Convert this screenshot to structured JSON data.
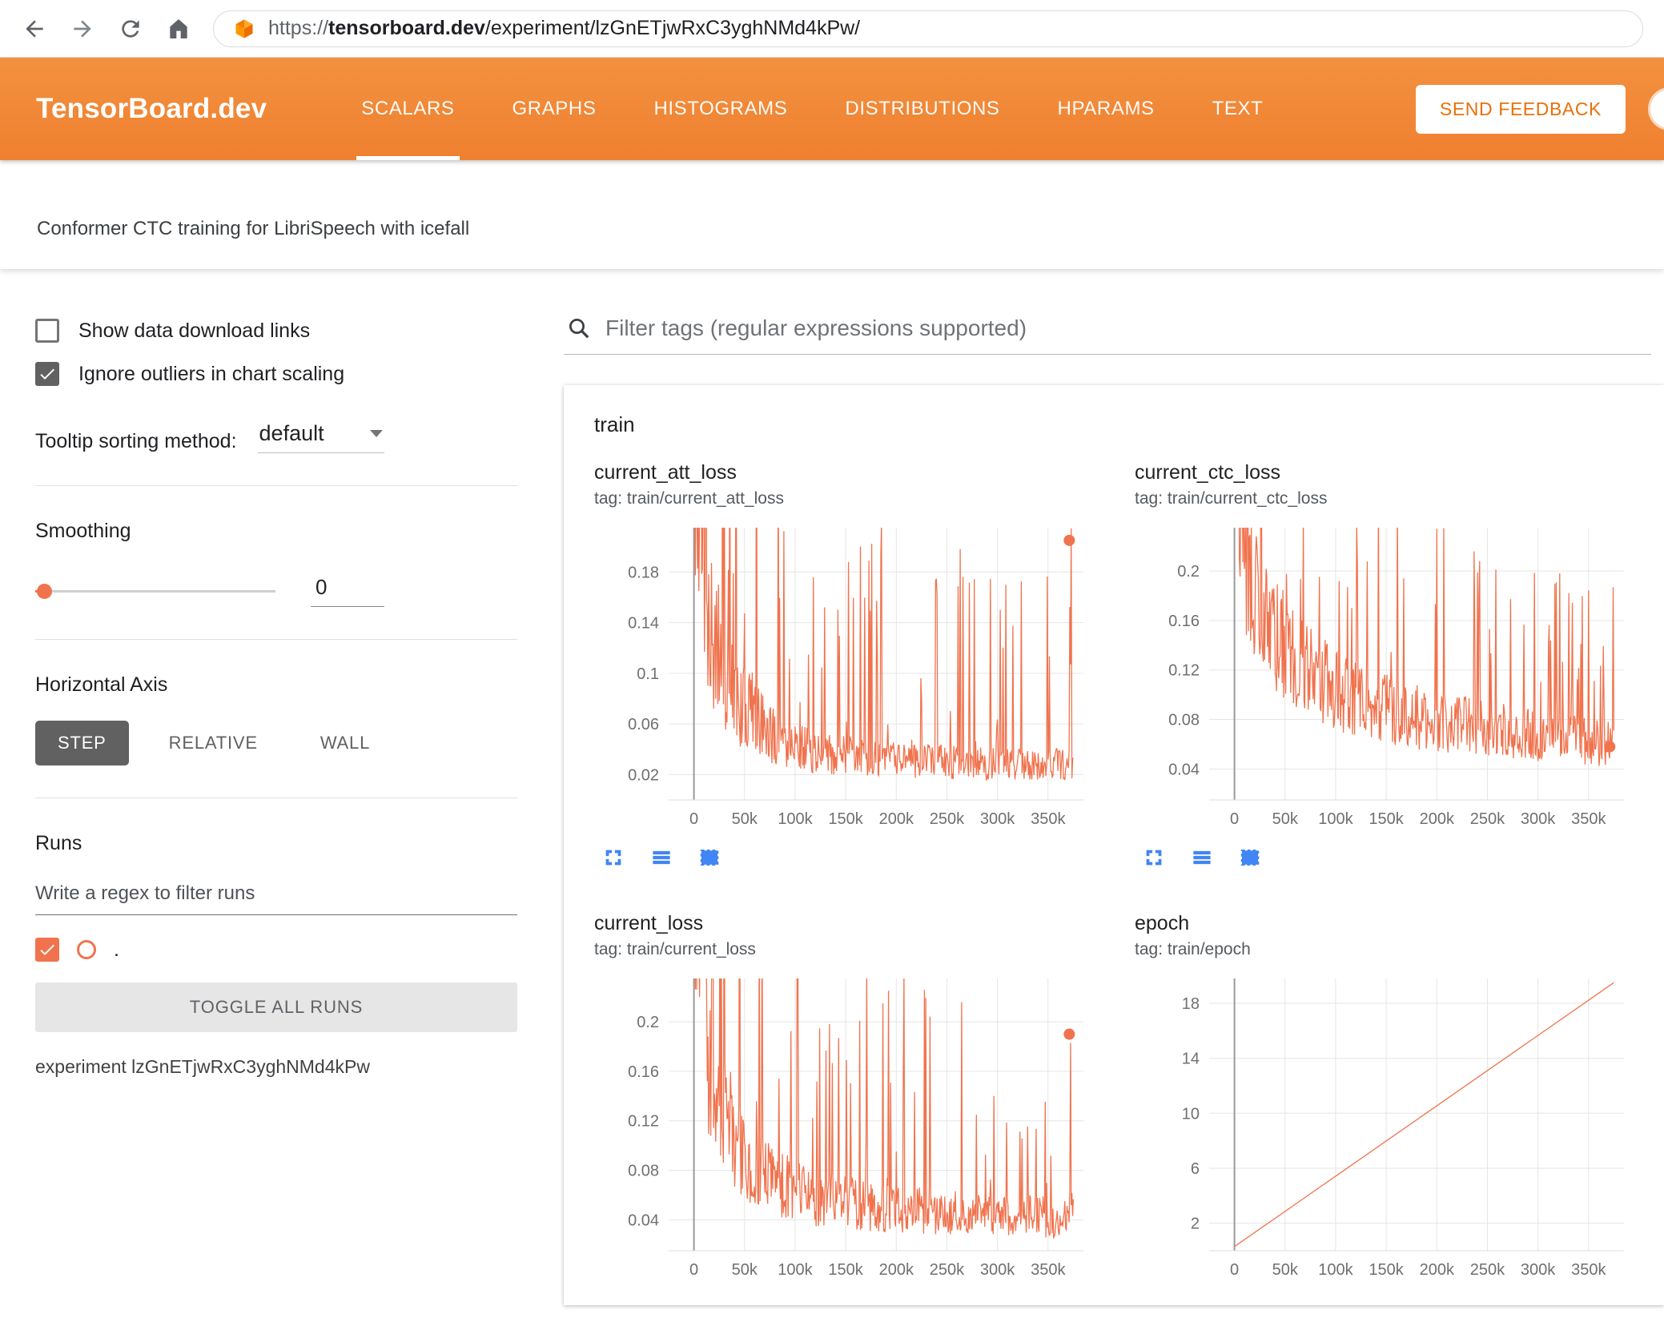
{
  "browser": {
    "url_scheme": "https://",
    "url_domain": "tensorboard.dev",
    "url_path": "/experiment/lzGnETjwRxC3yghNMd4kPw/"
  },
  "header": {
    "logo": "TensorBoard.dev",
    "tabs": [
      {
        "label": "SCALARS",
        "active": true
      },
      {
        "label": "GRAPHS",
        "active": false
      },
      {
        "label": "HISTOGRAMS",
        "active": false
      },
      {
        "label": "DISTRIBUTIONS",
        "active": false
      },
      {
        "label": "HPARAMS",
        "active": false
      },
      {
        "label": "TEXT",
        "active": false
      }
    ],
    "feedback_button": "SEND FEEDBACK"
  },
  "experiment": {
    "title": "Conformer CTC training for LibriSpeech with icefall",
    "label": "experiment lzGnETjwRxC3yghNMd4kPw"
  },
  "sidebar": {
    "show_download": {
      "label": "Show data download links",
      "checked": false
    },
    "ignore_outliers": {
      "label": "Ignore outliers in chart scaling",
      "checked": true
    },
    "tooltip_sorting": {
      "label": "Tooltip sorting method:",
      "value": "default"
    },
    "smoothing": {
      "label": "Smoothing",
      "value": "0"
    },
    "horizontal_axis": {
      "label": "Horizontal Axis",
      "options": [
        "STEP",
        "RELATIVE",
        "WALL"
      ],
      "selected": "STEP"
    },
    "runs": {
      "label": "Runs",
      "filter_placeholder": "Write a regex to filter runs",
      "run_name": ".",
      "run_checked": true,
      "toggle_button": "TOGGLE ALL RUNS"
    }
  },
  "main": {
    "filter_placeholder": "Filter tags (regular expressions supported)",
    "group": "train"
  },
  "colors": {
    "accent_orange": "#f0734e",
    "header_orange": "#ef8030",
    "icon_blue": "#4285f4"
  },
  "chart_data": [
    {
      "type": "line",
      "style": "noisy",
      "title": "current_att_loss",
      "tag": "tag: train/current_att_loss",
      "x_ticks": [
        0,
        50000,
        100000,
        150000,
        200000,
        250000,
        300000,
        350000
      ],
      "x_tick_labels": [
        "0",
        "50k",
        "100k",
        "150k",
        "200k",
        "250k",
        "300k",
        "350k"
      ],
      "y_ticks": [
        0.02,
        0.06,
        0.1,
        0.14,
        0.18
      ],
      "x_domain": [
        -25000,
        385000
      ],
      "y_domain": [
        0.0,
        0.215
      ],
      "x_max": 375000,
      "trend": [
        [
          0,
          0.3
        ],
        [
          15000,
          0.14
        ],
        [
          40000,
          0.08
        ],
        [
          80000,
          0.05
        ],
        [
          120000,
          0.038
        ],
        [
          180000,
          0.032
        ],
        [
          250000,
          0.03
        ],
        [
          320000,
          0.028
        ],
        [
          375000,
          0.028
        ]
      ],
      "noise": {
        "seed": 11,
        "jitter": 0.45,
        "spike_prob": 0.1,
        "spike_max": 5.5,
        "big_spike_prob": 0.012
      },
      "end_point": [
        371000,
        0.205
      ]
    },
    {
      "type": "line",
      "style": "noisy",
      "title": "current_ctc_loss",
      "tag": "tag: train/current_ctc_loss",
      "x_ticks": [
        0,
        50000,
        100000,
        150000,
        200000,
        250000,
        300000,
        350000
      ],
      "x_tick_labels": [
        "0",
        "50k",
        "100k",
        "150k",
        "200k",
        "250k",
        "300k",
        "350k"
      ],
      "y_ticks": [
        0.04,
        0.08,
        0.12,
        0.16,
        0.2
      ],
      "x_domain": [
        -25000,
        385000
      ],
      "y_domain": [
        0.015,
        0.235
      ],
      "x_max": 375000,
      "trend": [
        [
          0,
          0.28
        ],
        [
          15000,
          0.2
        ],
        [
          40000,
          0.15
        ],
        [
          80000,
          0.115
        ],
        [
          120000,
          0.095
        ],
        [
          180000,
          0.082
        ],
        [
          250000,
          0.072
        ],
        [
          320000,
          0.065
        ],
        [
          375000,
          0.06
        ]
      ],
      "noise": {
        "seed": 23,
        "jitter": 0.32,
        "spike_prob": 0.08,
        "spike_max": 2.2,
        "big_spike_prob": 0.008
      },
      "end_point": [
        371000,
        0.058
      ]
    },
    {
      "type": "line",
      "style": "noisy",
      "title": "current_loss",
      "tag": "tag: train/current_loss",
      "x_ticks": [
        0,
        50000,
        100000,
        150000,
        200000,
        250000,
        300000,
        350000
      ],
      "x_tick_labels": [
        "0",
        "50k",
        "100k",
        "150k",
        "200k",
        "250k",
        "300k",
        "350k"
      ],
      "y_ticks": [
        0.04,
        0.08,
        0.12,
        0.16,
        0.2
      ],
      "x_domain": [
        -25000,
        385000
      ],
      "y_domain": [
        0.015,
        0.235
      ],
      "x_max": 375000,
      "trend": [
        [
          0,
          0.32
        ],
        [
          15000,
          0.16
        ],
        [
          40000,
          0.1
        ],
        [
          80000,
          0.07
        ],
        [
          120000,
          0.058
        ],
        [
          180000,
          0.05
        ],
        [
          250000,
          0.046
        ],
        [
          320000,
          0.043
        ],
        [
          375000,
          0.042
        ]
      ],
      "noise": {
        "seed": 37,
        "jitter": 0.4,
        "spike_prob": 0.09,
        "spike_max": 4.0,
        "big_spike_prob": 0.01
      },
      "end_point": [
        371000,
        0.19
      ]
    },
    {
      "type": "line",
      "style": "linear",
      "title": "epoch",
      "tag": "tag: train/epoch",
      "x_ticks": [
        0,
        50000,
        100000,
        150000,
        200000,
        250000,
        300000,
        350000
      ],
      "x_tick_labels": [
        "0",
        "50k",
        "100k",
        "150k",
        "200k",
        "250k",
        "300k",
        "350k"
      ],
      "y_ticks": [
        2,
        6,
        10,
        14,
        18
      ],
      "x_domain": [
        -25000,
        385000
      ],
      "y_domain": [
        0,
        19.8
      ],
      "x_max": 375000,
      "trend": [
        [
          0,
          0.3
        ],
        [
          375000,
          19.5
        ]
      ],
      "noise": null,
      "end_point": null
    }
  ]
}
